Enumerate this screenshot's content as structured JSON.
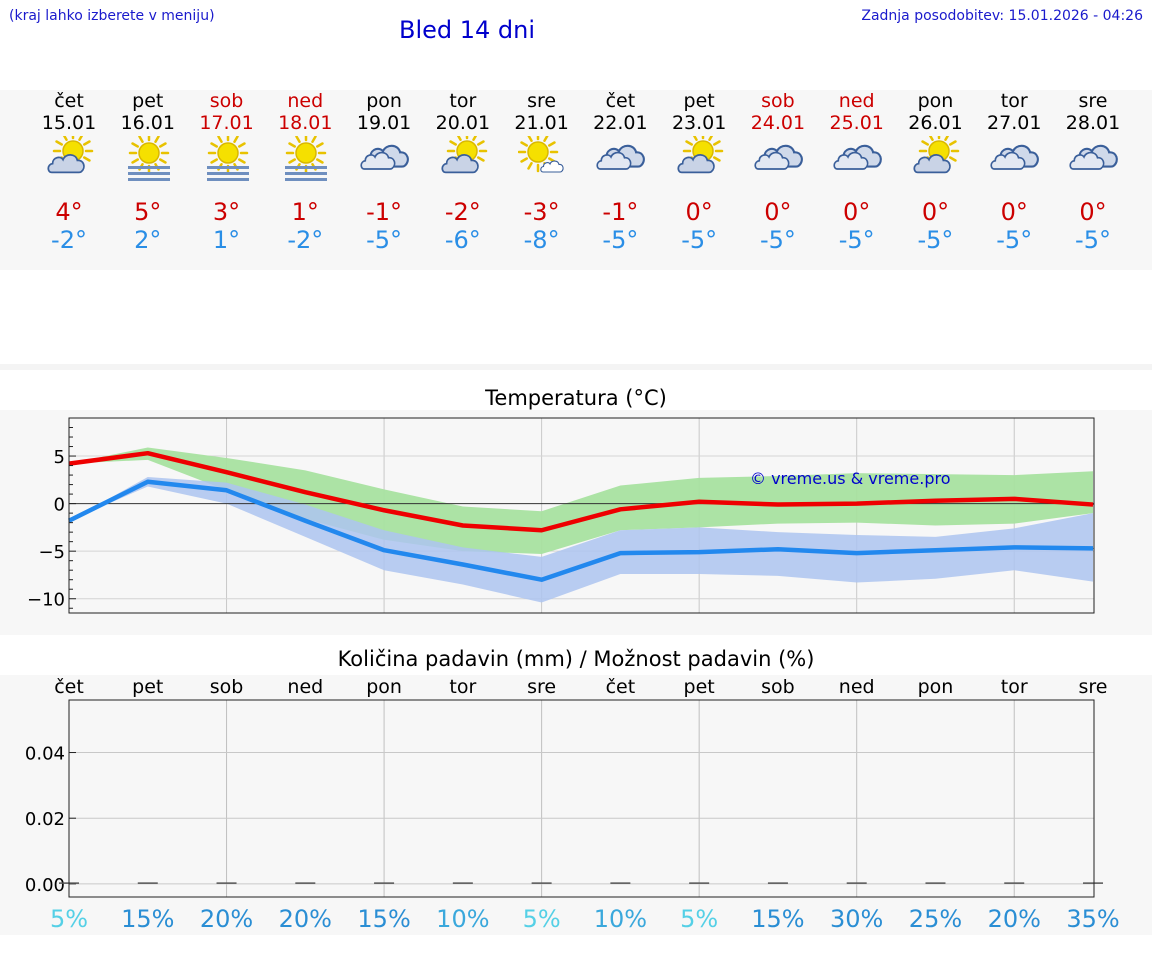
{
  "header": {
    "hint": "(kraj lahko izberete v meniju)",
    "title": "Bled 14 dni",
    "updated": "Zadnja posodobitev: 15.01.2026 - 04:26"
  },
  "days": [
    {
      "name": "čet",
      "date": "15.01",
      "weekend": false,
      "icon": "partly-cloudy-icon",
      "max": "4°",
      "min": "-2°"
    },
    {
      "name": "pet",
      "date": "16.01",
      "weekend": false,
      "icon": "sun-fog-icon",
      "max": "5°",
      "min": "2°"
    },
    {
      "name": "sob",
      "date": "17.01",
      "weekend": true,
      "icon": "sun-fog-icon",
      "max": "3°",
      "min": "1°"
    },
    {
      "name": "ned",
      "date": "18.01",
      "weekend": true,
      "icon": "sun-fog-icon",
      "max": "1°",
      "min": "-2°"
    },
    {
      "name": "pon",
      "date": "19.01",
      "weekend": false,
      "icon": "cloudy-icon",
      "max": "-1°",
      "min": "-5°"
    },
    {
      "name": "tor",
      "date": "20.01",
      "weekend": false,
      "icon": "partly-cloudy-icon",
      "max": "-2°",
      "min": "-6°"
    },
    {
      "name": "sre",
      "date": "21.01",
      "weekend": false,
      "icon": "mostly-sunny-icon",
      "max": "-3°",
      "min": "-8°"
    },
    {
      "name": "čet",
      "date": "22.01",
      "weekend": false,
      "icon": "cloudy-icon",
      "max": "-1°",
      "min": "-5°"
    },
    {
      "name": "pet",
      "date": "23.01",
      "weekend": false,
      "icon": "partly-cloudy-icon",
      "max": "0°",
      "min": "-5°"
    },
    {
      "name": "sob",
      "date": "24.01",
      "weekend": true,
      "icon": "cloudy-icon",
      "max": "0°",
      "min": "-5°"
    },
    {
      "name": "ned",
      "date": "25.01",
      "weekend": true,
      "icon": "cloudy-icon",
      "max": "0°",
      "min": "-5°"
    },
    {
      "name": "pon",
      "date": "26.01",
      "weekend": false,
      "icon": "partly-cloudy-icon",
      "max": "0°",
      "min": "-5°"
    },
    {
      "name": "tor",
      "date": "27.01",
      "weekend": false,
      "icon": "cloudy-icon",
      "max": "0°",
      "min": "-5°"
    },
    {
      "name": "sre",
      "date": "28.01",
      "weekend": false,
      "icon": "cloudy-icon",
      "max": "0°",
      "min": "-5°"
    }
  ],
  "colors": {
    "max_line": "#ee0000",
    "min_line": "#2288ee",
    "max_band": "#a8e2a0",
    "min_band": "#adc4f0",
    "weekend": "#cc0000"
  },
  "chart_data": [
    {
      "type": "line",
      "title": "Temperatura (°C)",
      "watermark": "© vreme.us & vreme.pro",
      "x": [
        0,
        1,
        2,
        3,
        4,
        5,
        6,
        7,
        8,
        9,
        10,
        11,
        12,
        13
      ],
      "ylim": [
        -11.5,
        9
      ],
      "yticks": [
        5,
        0,
        -5,
        -10
      ],
      "ytick_labels": [
        "5",
        "0",
        "−5",
        "−10"
      ],
      "series": [
        {
          "name": "max",
          "values": [
            4.2,
            5.3,
            3.3,
            1.2,
            -0.7,
            -2.3,
            -2.8,
            -0.6,
            0.2,
            -0.1,
            0.0,
            0.3,
            0.5,
            -0.1
          ]
        },
        {
          "name": "min",
          "values": [
            -1.8,
            2.3,
            1.4,
            -1.8,
            -4.9,
            -6.4,
            -8.0,
            -5.2,
            -5.1,
            -4.8,
            -5.2,
            -4.9,
            -4.6,
            -4.7
          ]
        },
        {
          "name": "max_band_upper",
          "values": [
            4.2,
            5.9,
            4.8,
            3.5,
            1.5,
            -0.3,
            -0.8,
            1.9,
            2.7,
            2.9,
            3.2,
            3.1,
            3.0,
            3.4
          ]
        },
        {
          "name": "max_band_lower",
          "values": [
            4.2,
            4.6,
            1.4,
            -1.6,
            -3.8,
            -5.0,
            -5.3,
            -2.8,
            -2.5,
            -2.1,
            -2.0,
            -2.3,
            -2.1,
            -1.0
          ]
        },
        {
          "name": "min_band_upper",
          "values": [
            -1.8,
            2.8,
            2.2,
            -0.1,
            -2.8,
            -4.6,
            -5.6,
            -2.8,
            -2.5,
            -3.0,
            -3.3,
            -3.5,
            -2.6,
            -1.0
          ]
        },
        {
          "name": "min_band_lower",
          "values": [
            -1.8,
            1.8,
            0.0,
            -3.5,
            -7.0,
            -8.5,
            -10.4,
            -7.4,
            -7.4,
            -7.6,
            -8.3,
            -7.9,
            -7.0,
            -8.2
          ]
        }
      ]
    },
    {
      "type": "bar",
      "title": "Količina padavin (mm) / Možnost padavin (%)",
      "categories": [
        "čet",
        "pet",
        "sob",
        "ned",
        "pon",
        "tor",
        "sre",
        "čet",
        "pet",
        "sob",
        "ned",
        "pon",
        "tor",
        "sre"
      ],
      "values": [
        0,
        0,
        0,
        0,
        0,
        0,
        0,
        0,
        0,
        0,
        0,
        0,
        0,
        0
      ],
      "ylim": [
        -0.004,
        0.056
      ],
      "yticks": [
        0.04,
        0.02,
        0.0
      ],
      "ytick_labels": [
        "0.04",
        "0.02",
        "0.00"
      ],
      "probability": [
        "5%",
        "15%",
        "20%",
        "20%",
        "15%",
        "10%",
        "5%",
        "10%",
        "5%",
        "15%",
        "30%",
        "25%",
        "20%",
        "35%"
      ],
      "probability_values": [
        5,
        15,
        20,
        20,
        15,
        10,
        5,
        10,
        5,
        15,
        30,
        25,
        20,
        35
      ]
    }
  ]
}
